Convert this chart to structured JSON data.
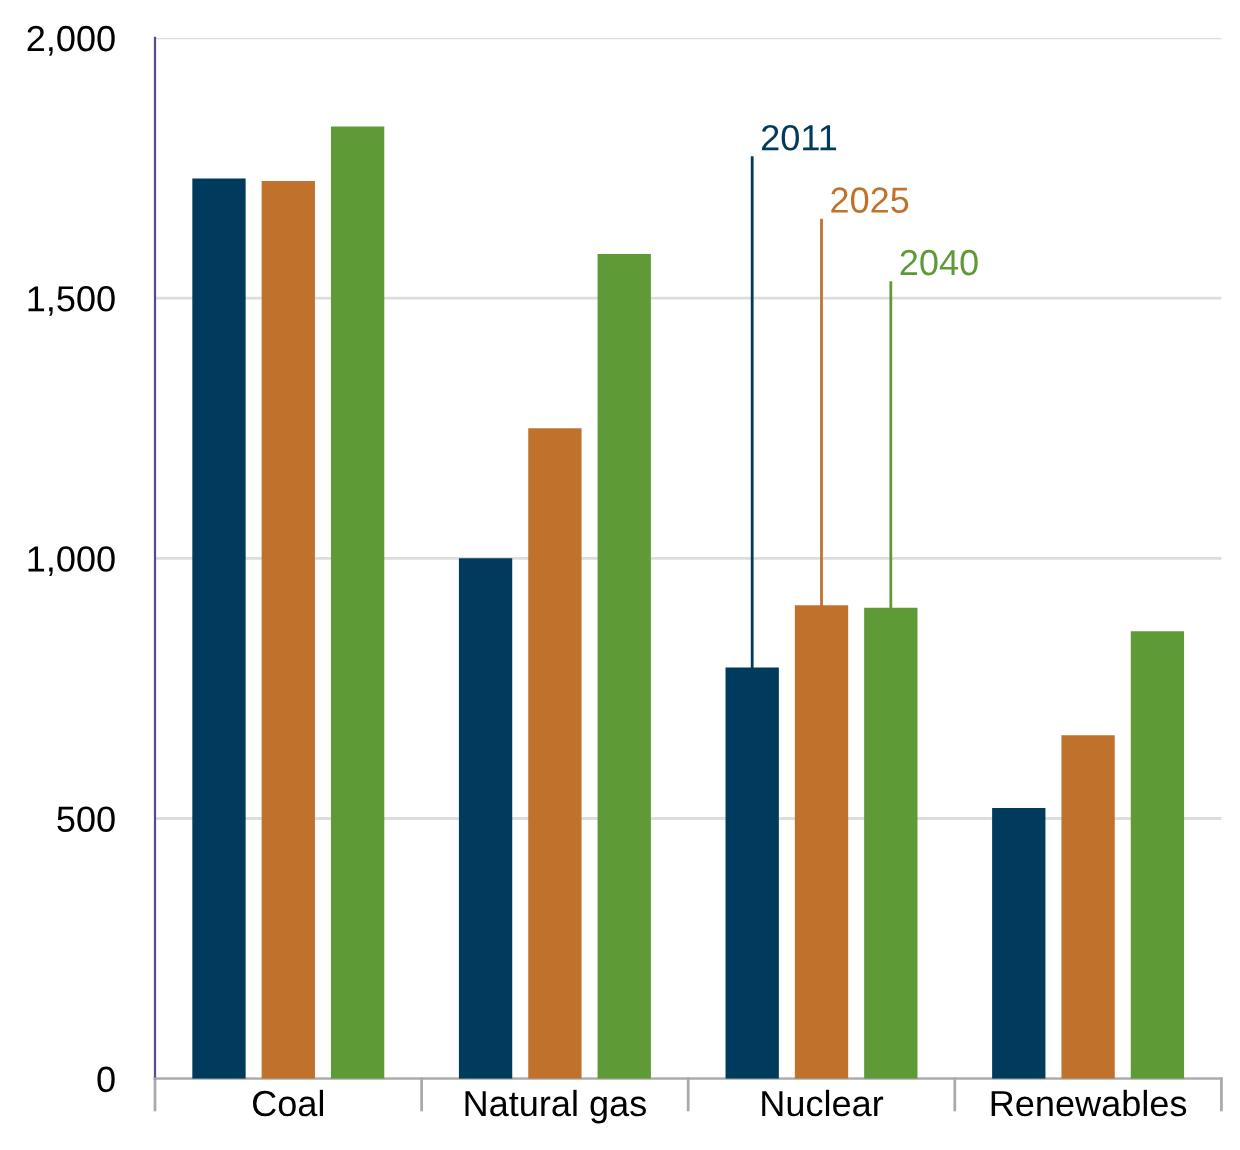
{
  "chart_data": {
    "type": "bar",
    "categories": [
      "Coal",
      "Natural gas",
      "Nuclear",
      "Renewables"
    ],
    "series": [
      {
        "name": "2011",
        "color": "#003a5c",
        "values": [
          1730,
          1000,
          790,
          520
        ]
      },
      {
        "name": "2025",
        "color": "#c0722c",
        "values": [
          1725,
          1250,
          910,
          660
        ]
      },
      {
        "name": "2040",
        "color": "#5e9a35",
        "values": [
          1830,
          1585,
          905,
          860
        ]
      }
    ],
    "ylim": [
      0,
      2000
    ],
    "yticks": [
      {
        "value": 0,
        "label": "0"
      },
      {
        "value": 500,
        "label": "500"
      },
      {
        "value": 1000,
        "label": "1,000"
      },
      {
        "value": 1500,
        "label": "1,500"
      },
      {
        "value": 2000,
        "label": "2,000"
      }
    ],
    "grid": "y",
    "legend": false
  }
}
